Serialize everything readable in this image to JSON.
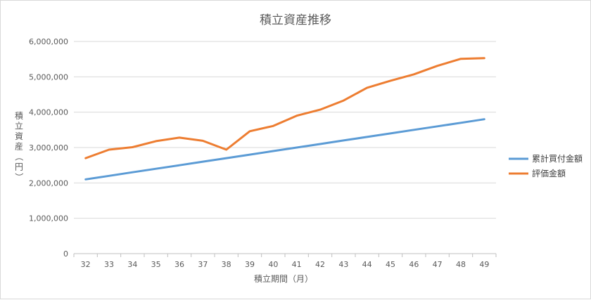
{
  "chart_data": {
    "type": "line",
    "title": "積立資産推移",
    "xlabel": "積立期間（月）",
    "ylabel": "積立資産（円）",
    "categories": [
      "32",
      "33",
      "34",
      "35",
      "36",
      "37",
      "38",
      "39",
      "40",
      "41",
      "42",
      "43",
      "44",
      "45",
      "46",
      "47",
      "48",
      "49"
    ],
    "ylim": [
      0,
      6000000
    ],
    "yticks": [
      0,
      1000000,
      2000000,
      3000000,
      4000000,
      5000000,
      6000000
    ],
    "ytick_labels": [
      "0",
      "1,000,000",
      "2,000,000",
      "3,000,000",
      "4,000,000",
      "5,000,000",
      "6,000,000"
    ],
    "grid": true,
    "legend_position": "right",
    "series": [
      {
        "name": "累計買付金額",
        "color": "#5b9bd5",
        "values": [
          2100000,
          2200000,
          2300000,
          2400000,
          2500000,
          2600000,
          2700000,
          2800000,
          2900000,
          3000000,
          3100000,
          3200000,
          3300000,
          3400000,
          3500000,
          3600000,
          3700000,
          3800000
        ]
      },
      {
        "name": "評価金額",
        "color": "#ed7d31",
        "values": [
          2700000,
          2940000,
          3010000,
          3180000,
          3280000,
          3190000,
          2940000,
          3460000,
          3610000,
          3900000,
          4070000,
          4330000,
          4690000,
          4890000,
          5070000,
          5310000,
          5510000,
          5530000
        ]
      }
    ]
  }
}
